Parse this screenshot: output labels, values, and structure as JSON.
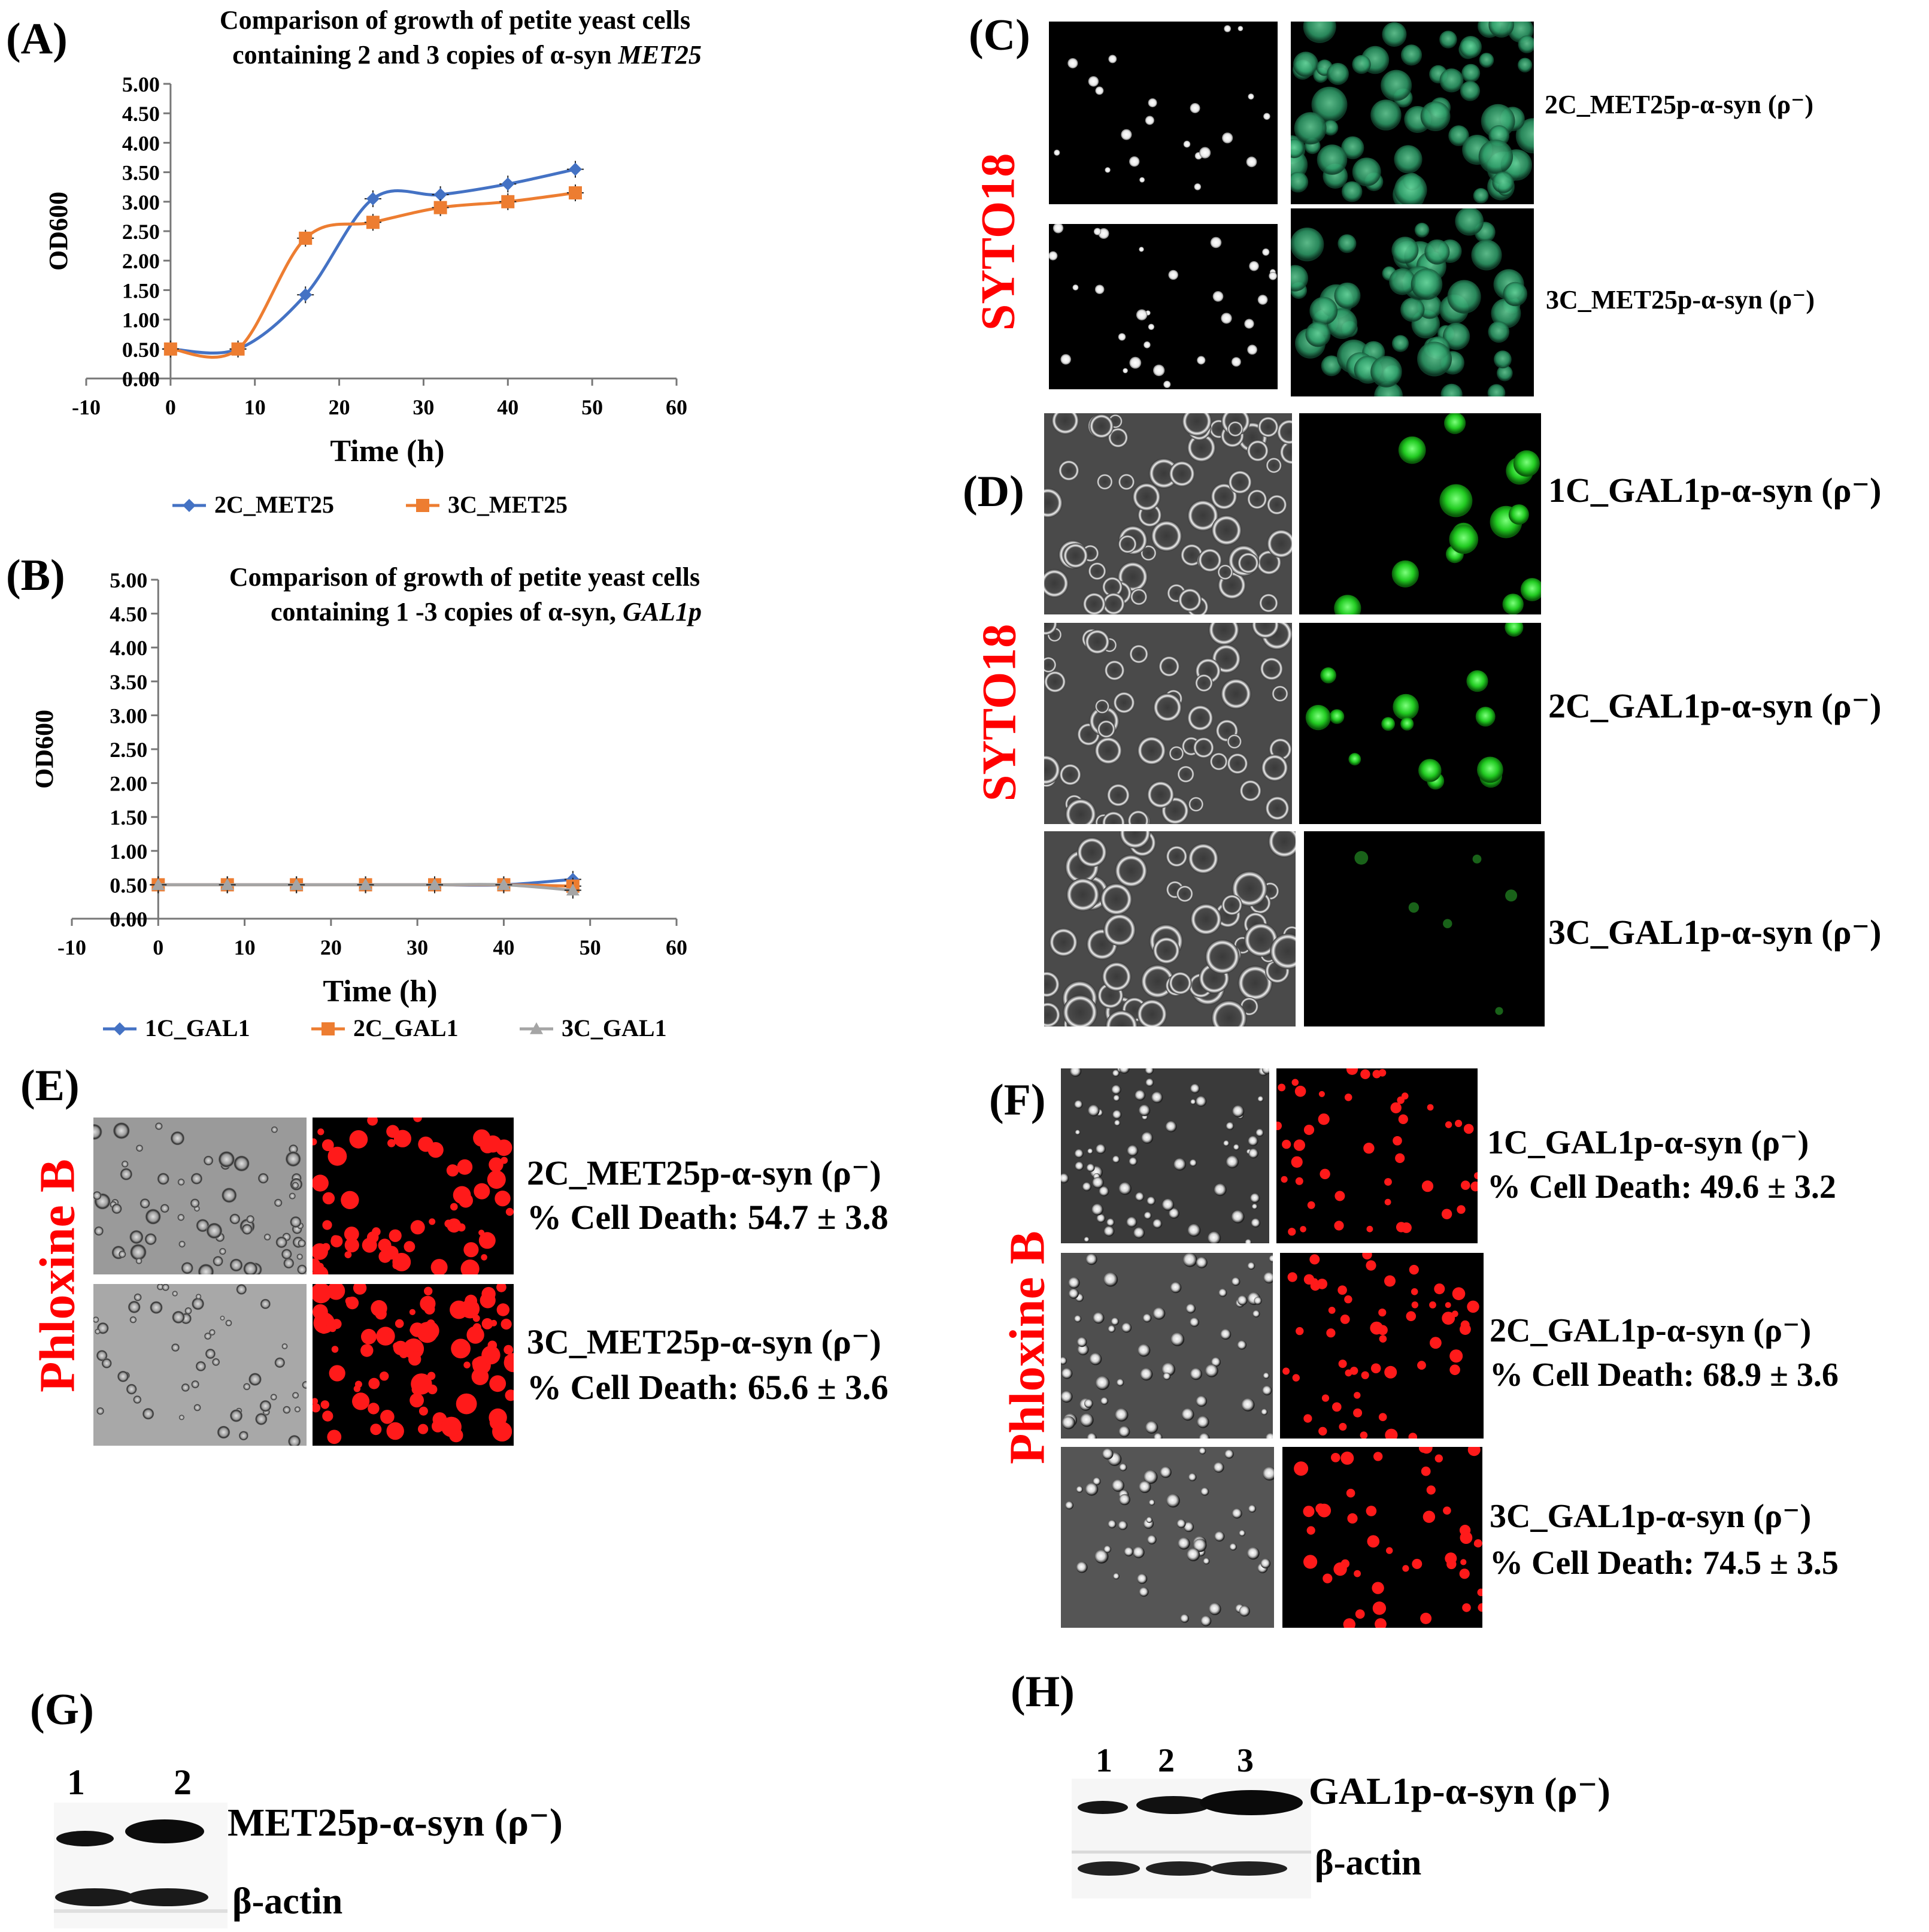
{
  "panels": {
    "A": "(A)",
    "B": "(B)",
    "C": "(C)",
    "D": "(D)",
    "E": "(E)",
    "F": "(F)",
    "G": "(G)",
    "H": "(H)"
  },
  "stains": {
    "syto": "SYTO18",
    "phloxine": "Phloxine B"
  },
  "colors": {
    "series_blue": "#4472c4",
    "series_orange": "#ed7d31",
    "series_gray": "#a5a5a5",
    "stain_red": "#ff0000",
    "green_fluor": "#2bd12b",
    "red_fluor": "#ff1a1a"
  },
  "chart_data": [
    {
      "type": "line",
      "title_line1": "Comparison of growth of petite yeast cells",
      "title_line2_prefix": "containing  2 and 3 copies of    α-syn ",
      "title_line2_italic": "MET25",
      "xlabel": "Time (h)",
      "ylabel": "OD600",
      "xlim": [
        -10,
        60
      ],
      "ylim": [
        0,
        5
      ],
      "xticks": [
        "-10",
        "0",
        "10",
        "20",
        "30",
        "40",
        "50",
        "60"
      ],
      "yticks": [
        "0.00",
        "0.50",
        "1.00",
        "1.50",
        "2.00",
        "2.50",
        "3.00",
        "3.50",
        "4.00",
        "4.50",
        "5.00"
      ],
      "legend_position": "bottom",
      "series": [
        {
          "name": "2C_MET25",
          "color": "#4472c4",
          "marker": "diamond",
          "x": [
            0,
            8,
            16,
            24,
            32,
            40,
            48
          ],
          "y": [
            0.5,
            0.5,
            1.42,
            3.05,
            3.12,
            3.3,
            3.55
          ]
        },
        {
          "name": "3C_MET25",
          "color": "#ed7d31",
          "marker": "square",
          "x": [
            0,
            8,
            16,
            24,
            32,
            40,
            48
          ],
          "y": [
            0.5,
            0.5,
            2.38,
            2.65,
            2.9,
            3.0,
            3.15
          ]
        }
      ]
    },
    {
      "type": "line",
      "title_line1": "Comparison of growth of petite yeast cells",
      "title_line2_prefix": "containing 1 -3 copies of  α-syn, ",
      "title_line2_italic": "GAL1p",
      "xlabel": "Time (h)",
      "ylabel": "OD600",
      "xlim": [
        -10,
        60
      ],
      "ylim": [
        0,
        5
      ],
      "xticks": [
        "-10",
        "0",
        "10",
        "20",
        "30",
        "40",
        "50",
        "60"
      ],
      "yticks": [
        "0.00",
        "0.50",
        "1.00",
        "1.50",
        "2.00",
        "2.50",
        "3.00",
        "3.50",
        "4.00",
        "4.50",
        "5.00"
      ],
      "legend_position": "bottom",
      "series": [
        {
          "name": "1C_GAL1",
          "color": "#4472c4",
          "marker": "diamond",
          "x": [
            0,
            8,
            16,
            24,
            32,
            40,
            48
          ],
          "y": [
            0.5,
            0.5,
            0.5,
            0.5,
            0.5,
            0.5,
            0.58
          ]
        },
        {
          "name": "2C_GAL1",
          "color": "#ed7d31",
          "marker": "square",
          "x": [
            0,
            8,
            16,
            24,
            32,
            40,
            48
          ],
          "y": [
            0.5,
            0.5,
            0.5,
            0.5,
            0.5,
            0.5,
            0.48
          ]
        },
        {
          "name": "3C_GAL1",
          "color": "#a5a5a5",
          "marker": "triangle",
          "x": [
            0,
            8,
            16,
            24,
            32,
            40,
            48
          ],
          "y": [
            0.5,
            0.5,
            0.5,
            0.5,
            0.5,
            0.5,
            0.42
          ]
        }
      ]
    }
  ],
  "C_labels": [
    "2C_MET25p-α-syn (ρ⁻)",
    "3C_MET25p-α-syn (ρ⁻)"
  ],
  "D_labels": [
    "1C_GAL1p-α-syn  (ρ⁻)",
    "2C_GAL1p-α-syn  (ρ⁻)",
    "3C_GAL1p-α-syn  (ρ⁻)"
  ],
  "E_labels": [
    {
      "strain": "2C_MET25p-α-syn (ρ⁻)",
      "death": "% Cell Death: 54.7 ± 3.8"
    },
    {
      "strain": "3C_MET25p-α-syn (ρ⁻)",
      "death": "% Cell Death: 65.6 ± 3.6"
    }
  ],
  "F_labels": [
    {
      "strain": "1C_GAL1p-α-syn (ρ⁻)",
      "death": "% Cell Death: 49.6 ± 3.2"
    },
    {
      "strain": "2C_GAL1p-α-syn (ρ⁻)",
      "death": "% Cell Death: 68.9 ± 3.6"
    },
    {
      "strain": "3C_GAL1p-α-syn (ρ⁻)",
      "death": "% Cell Death: 74.5 ± 3.5"
    }
  ],
  "G": {
    "lanes": [
      "1",
      "2"
    ],
    "band_label": "MET25p-α-syn (ρ⁻)",
    "actin_label": "β-actin"
  },
  "H": {
    "lanes": [
      "1",
      "2",
      "3"
    ],
    "band_label": "GAL1p-α-syn  (ρ⁻)",
    "actin_label": "β-actin"
  }
}
